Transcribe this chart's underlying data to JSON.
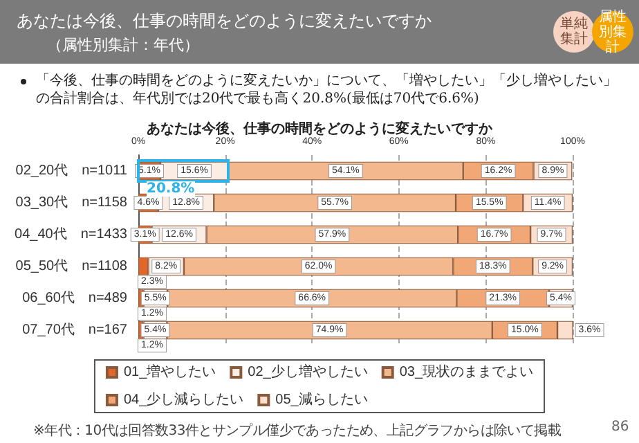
{
  "chart_data": {
    "type": "bar",
    "orientation": "horizontal",
    "stacked": true,
    "title": "あなたは今後、仕事の時間をどのように変えたいですか",
    "subtitle": "（属性別集計：年代）",
    "annotations": [
      "単純集計",
      "属性別集計",
      "「今後、仕事の時間をどのように変えたいか」について、「増やしたい」「少し増やしたい」の合計割合は、年代別では20代で最も高く20.8%(最低は70代で6.6%)",
      "あなたは今後、仕事の時間をどのように変えたいですか",
      {
        "text": "20.8%",
        "x": 20.8,
        "y": "02_20代　n=1011"
      },
      "※年代：10代は回答数33件とサンプル僅少であったため、上記グラフからは除いて掲載",
      "86"
    ],
    "categories": [
      "02_20代　n=1011",
      "03_30代　n=1158",
      "04_40代　n=1433",
      "05_50代　n=1108",
      "06_60代　n=489",
      "07_70代　n=167"
    ],
    "series": [
      {
        "name": "01_増やしたい",
        "color": "#e0662a",
        "values": [
          5.1,
          4.6,
          3.1,
          2.3,
          1.2,
          1.2
        ],
        "value_labels": [
          "5.1%",
          "4.6%",
          "3.1%",
          "2.3%",
          "1.2%",
          "1.2%"
        ]
      },
      {
        "name": "02_少し増やしたい",
        "color": "#fcede4",
        "values": [
          15.6,
          12.8,
          12.6,
          8.2,
          5.5,
          5.4
        ],
        "value_labels": [
          "15.6%",
          "12.8%",
          "12.6%",
          "8.2%",
          "5.5%",
          "5.4%"
        ]
      },
      {
        "name": "03_現状のままでよい",
        "color": "#f4b88e",
        "values": [
          54.1,
          55.7,
          57.9,
          62.0,
          66.6,
          74.9
        ],
        "value_labels": [
          "54.1%",
          "55.7%",
          "57.9%",
          "62.0%",
          "66.6%",
          "74.9%"
        ]
      },
      {
        "name": "04_少し減らしたい",
        "color": "#f2a777",
        "values": [
          16.2,
          15.5,
          16.7,
          18.3,
          21.3,
          15.0
        ],
        "value_labels": [
          "16.2%",
          "15.5%",
          "16.7%",
          "18.3%",
          "21.3%",
          "15.0%"
        ]
      },
      {
        "name": "05_減らしたい",
        "color": "#fbe0cf",
        "values": [
          8.9,
          11.4,
          9.7,
          9.2,
          5.4,
          3.6
        ],
        "value_labels": [
          "8.9%",
          "11.4%",
          "9.7%",
          "9.2%",
          "5.4%",
          "3.6%"
        ]
      }
    ],
    "xlim": [
      0,
      100
    ],
    "xticks": [
      {
        "value": 0,
        "label": "0%"
      },
      {
        "value": 20,
        "label": "20%"
      },
      {
        "value": 40,
        "label": "40%"
      },
      {
        "value": 60,
        "label": "60%"
      },
      {
        "value": 80,
        "label": "80%"
      },
      {
        "value": 100,
        "label": "100%"
      }
    ],
    "grid": "x",
    "legend": "bottom"
  }
}
